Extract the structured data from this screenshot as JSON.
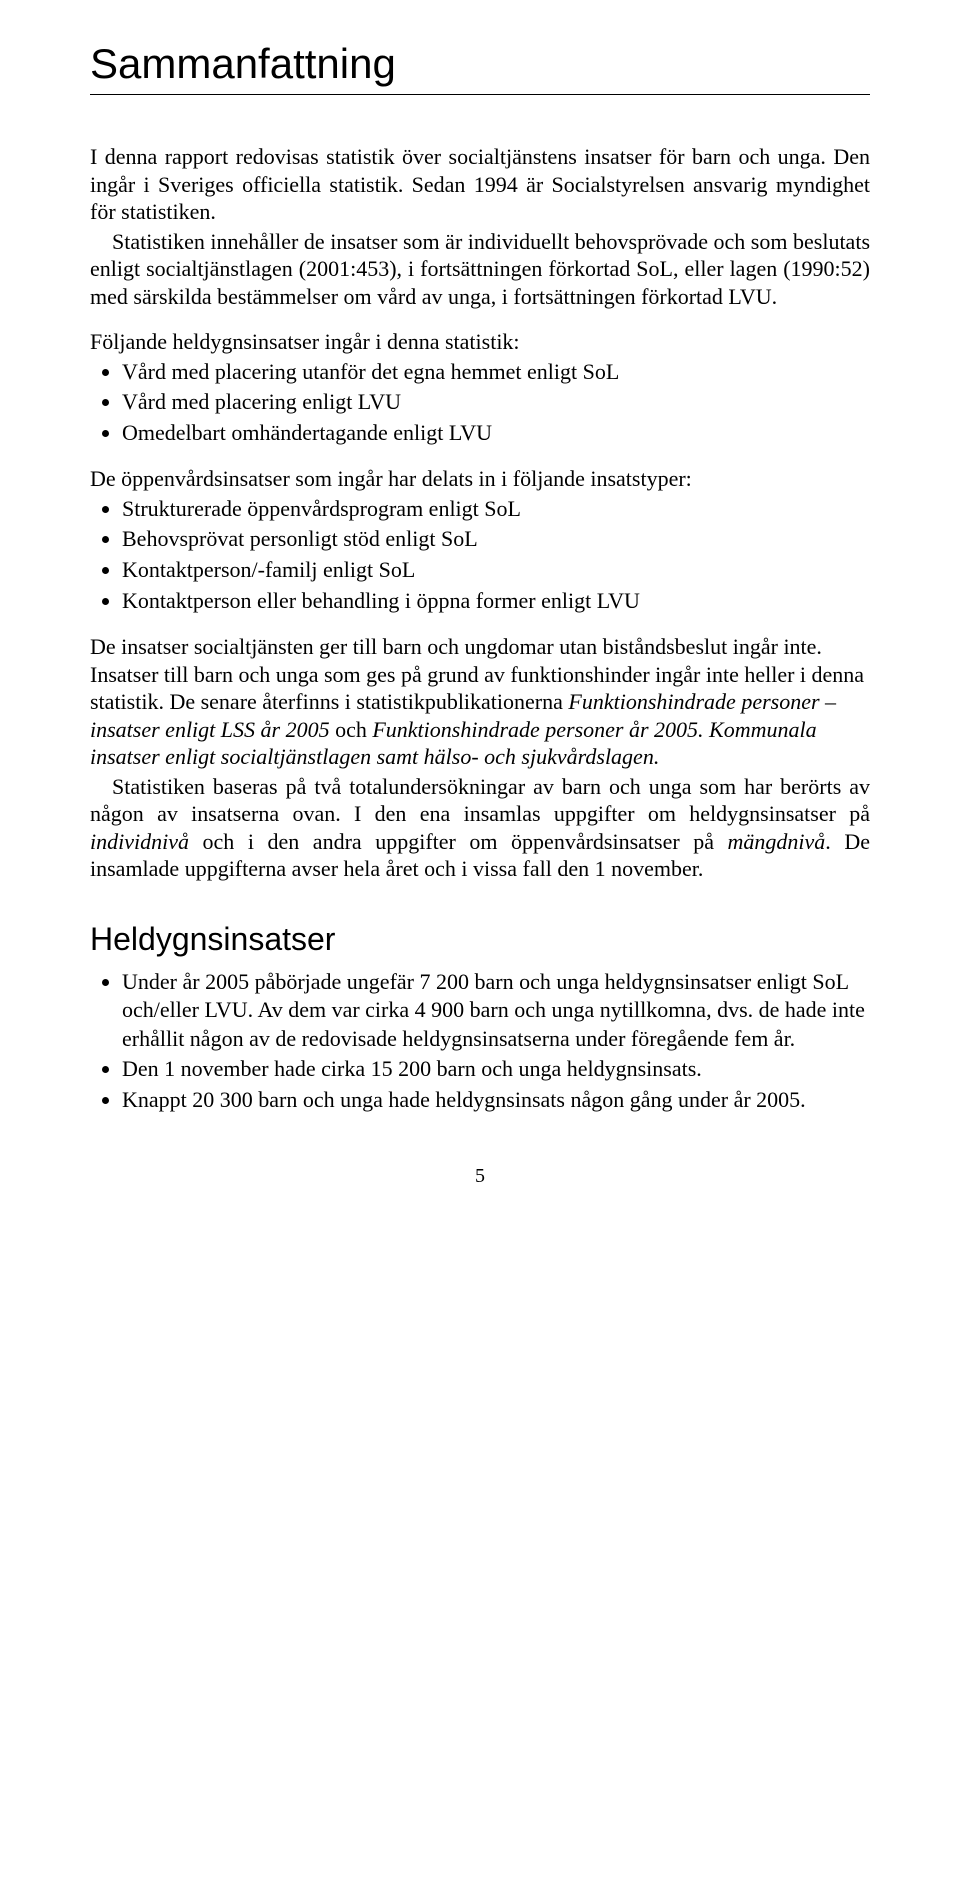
{
  "title": "Sammanfattning",
  "intro_p1": "I denna rapport redovisas statistik över socialtjänstens insatser för barn och unga. Den ingår i Sveriges officiella statistik. Sedan 1994 är Socialstyrelsen ansvarig myndighet för statistiken.",
  "intro_p2": "Statistiken innehåller de insatser som är individuellt behovsprövade och som beslutats enligt socialtjänstlagen (2001:453), i fortsättningen förkortad SoL, eller lagen (1990:52) med särskilda bestämmelser om vård av unga, i fortsättningen förkortad LVU.",
  "list1_lead": "Följande heldygnsinsatser ingår i denna statistik:",
  "list1": [
    "Vård med placering utanför det egna hemmet enligt SoL",
    "Vård med placering enligt LVU",
    "Omedelbart omhändertagande enligt LVU"
  ],
  "list2_lead": "De öppenvårdsinsatser som ingår har delats in i följande insatstyper:",
  "list2": [
    "Strukturerade öppenvårdsprogram enligt SoL",
    "Behovsprövat personligt stöd enligt SoL",
    "Kontaktperson/-familj enligt SoL",
    "Kontaktperson eller behandling i öppna former enligt LVU"
  ],
  "para3_html": "De insatser socialtjänsten ger till barn och ungdomar utan biståndsbeslut ingår inte. Insatser till barn och unga som ges på grund av funktionshinder ingår inte heller i denna statistik. De senare återfinns i statistikpublikationerna <span class=\"italic\">Funktionshindrade personer – insatser enligt LSS år 2005</span> och <span class=\"italic\">Funktionshindrade personer år 2005. Kommunala insatser enligt socialtjänstlagen samt hälso- och sjukvårdslagen.</span>",
  "para4_html": "Statistiken baseras på två totalundersökningar av barn och unga som har berörts av någon av insatserna ovan. I den ena insamlas uppgifter om heldygnsinsatser på <span class=\"italic\">individnivå</span> och i den andra uppgifter om öppenvårdsinsatser på <span class=\"italic\">mängdnivå</span>. De insamlade uppgifterna avser hela året och i vissa fall den 1 november.",
  "section2_title": "Heldygnsinsatser",
  "section2_list": [
    "Under år 2005 påbörjade ungefär 7 200 barn och unga heldygnsinsatser enligt SoL och/eller LVU. Av dem var cirka 4 900 barn och unga nytillkomna, dvs. de hade inte erhållit någon av de redovisade heldygnsinsatserna under föregående fem år.",
    "Den 1 november hade cirka 15 200 barn och unga heldygnsinsats.",
    "Knappt 20 300 barn och unga hade heldygnsinsats någon gång under år 2005."
  ],
  "page_number": "5"
}
